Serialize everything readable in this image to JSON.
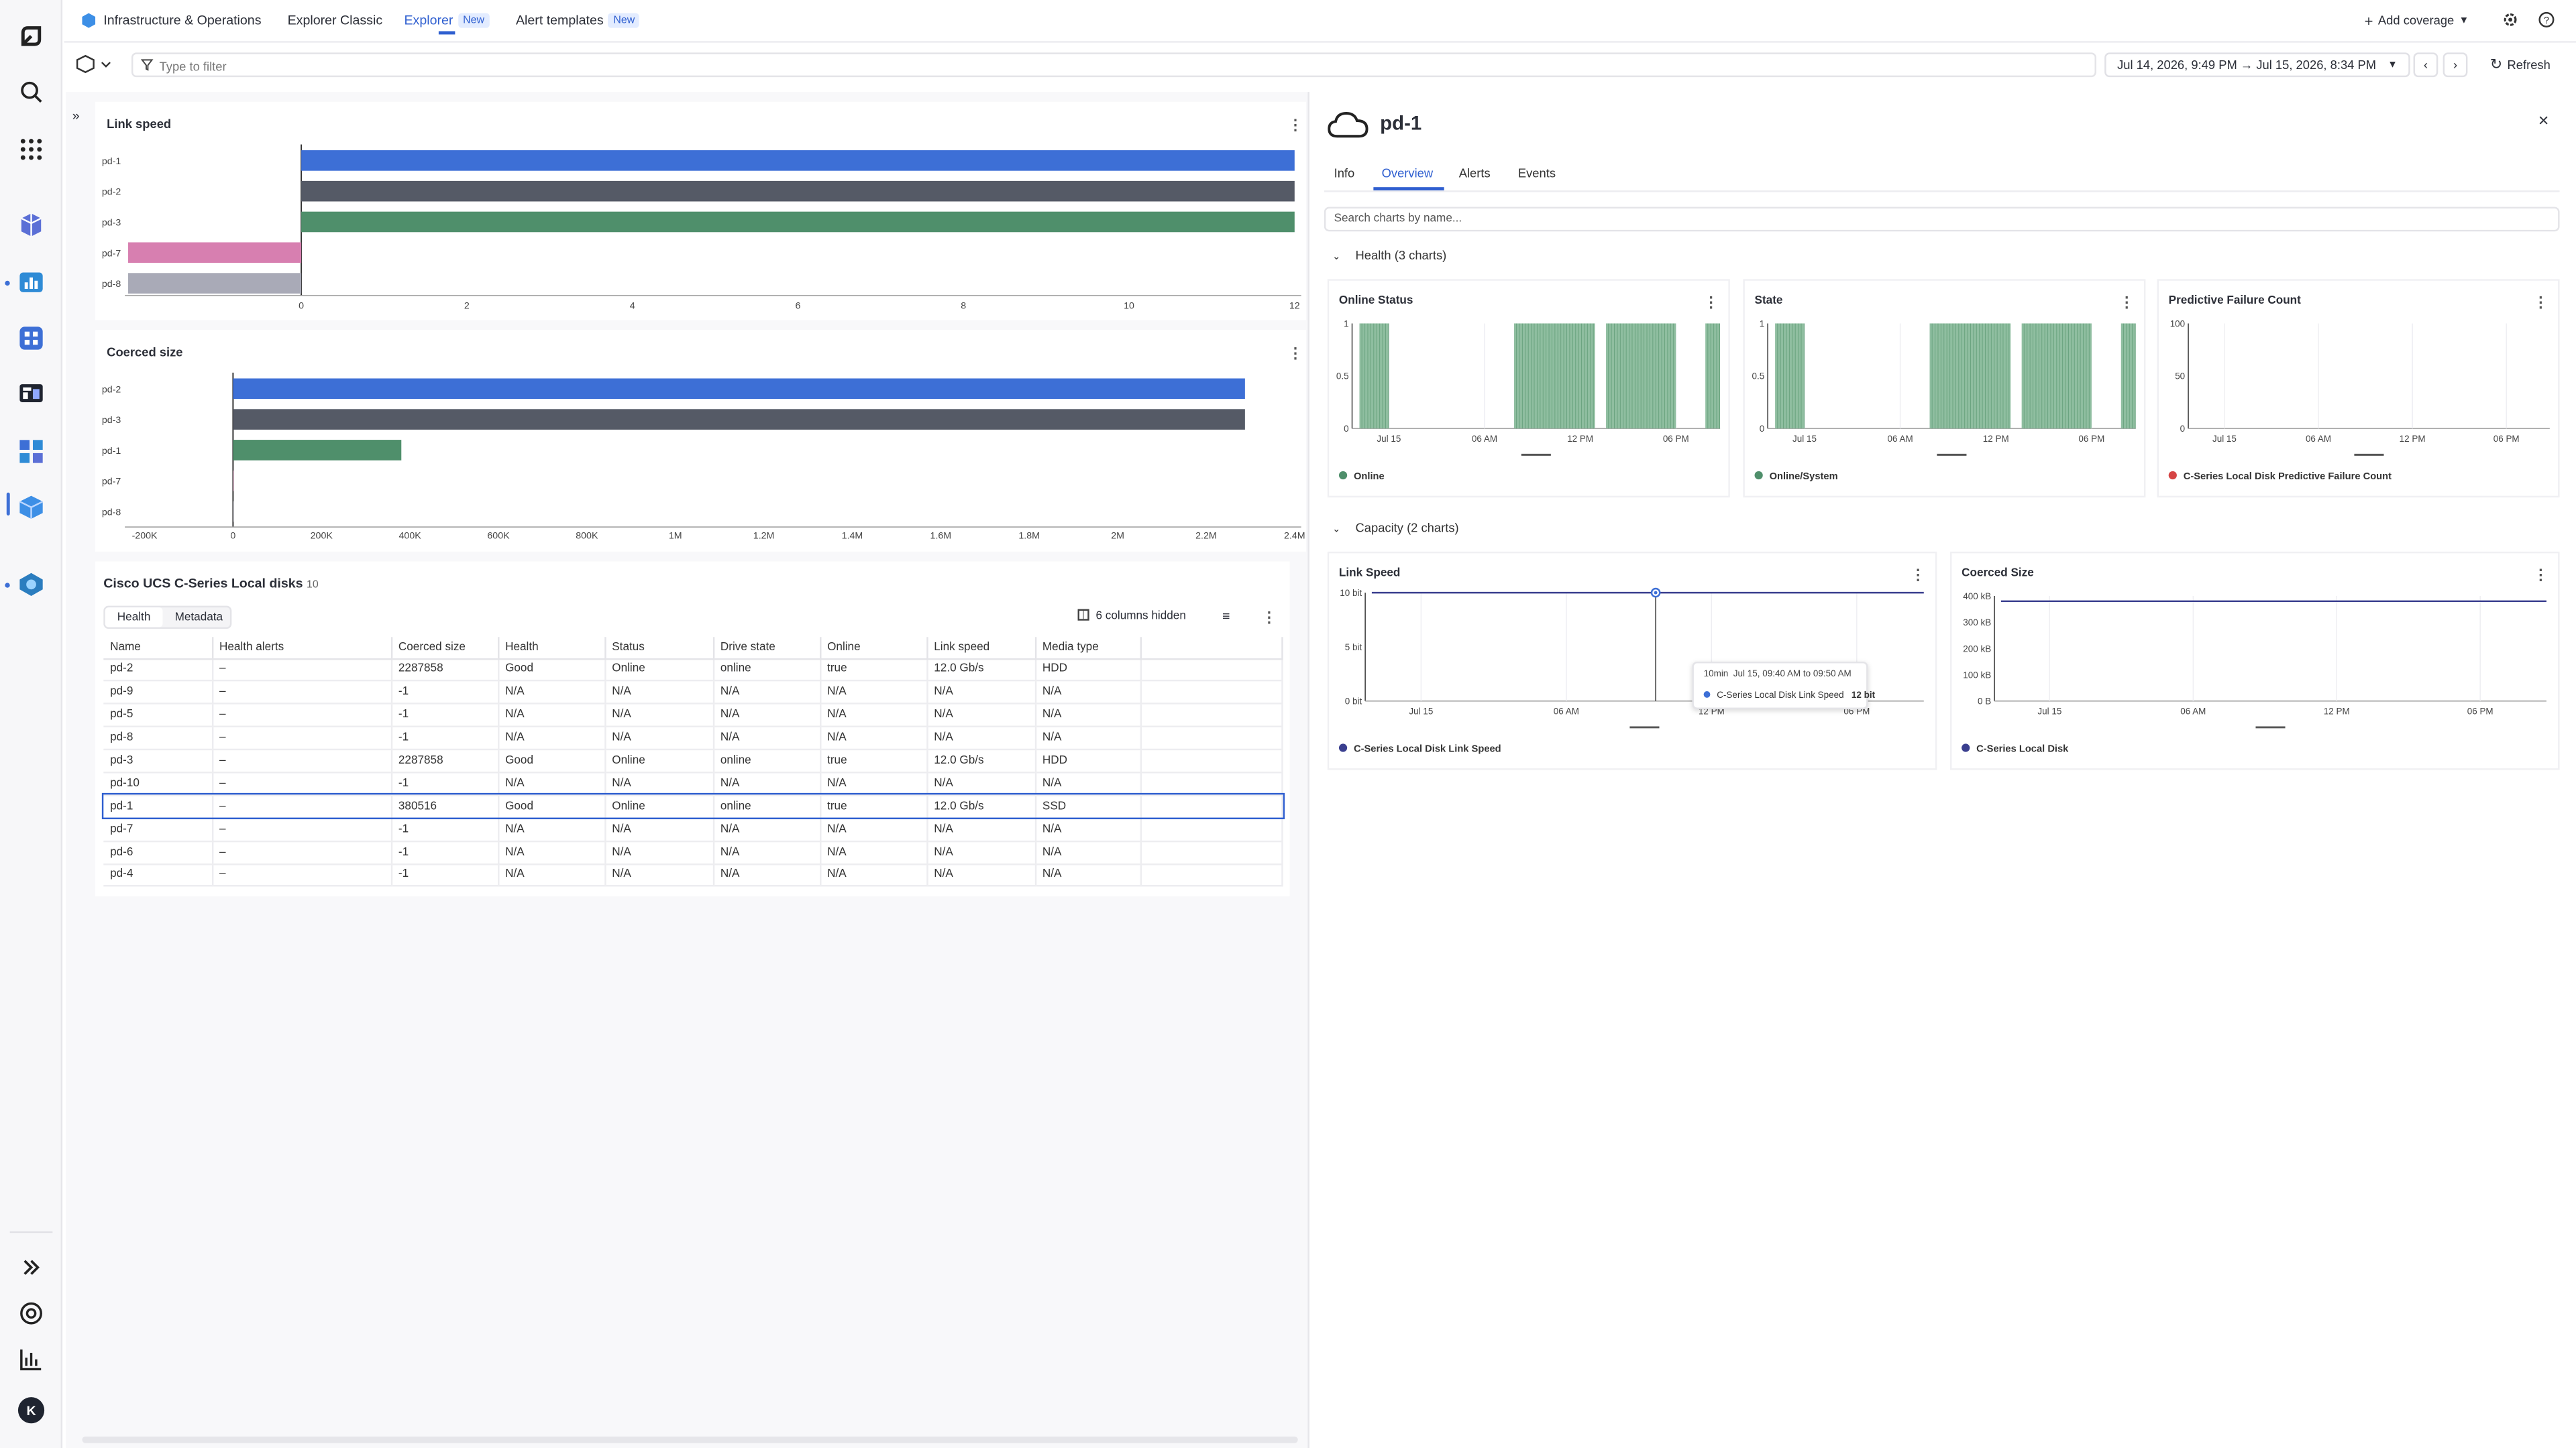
{
  "topnav": {
    "app_title": "Infrastructure & Operations",
    "tab_explorer_classic": "Explorer Classic",
    "tab_explorer": "Explorer",
    "tab_explorer_badge": "New",
    "tab_alert_templates": "Alert templates",
    "tab_alert_templates_badge": "New",
    "add_coverage": "Add coverage"
  },
  "toolbar": {
    "filter_placeholder": "Type to filter",
    "timeframe": "Jul 14, 2026, 9:49 PM → Jul 15, 2026, 8:34 PM",
    "refresh": "Refresh"
  },
  "left": {
    "link_speed_chart": {
      "title": "Link speed",
      "type": "bar",
      "categories": [
        "pd-1",
        "pd-2",
        "pd-3",
        "pd-7",
        "pd-8"
      ],
      "values": [
        12,
        12,
        12,
        -1,
        -1
      ],
      "colors": [
        "#3d6fd6",
        "#555a66",
        "#4f8f6b",
        "#d77fb0",
        "#a9aab7"
      ],
      "ticks": [
        "0",
        "2",
        "4",
        "6",
        "8",
        "10",
        "12"
      ],
      "xlim": [
        -1,
        12
      ]
    },
    "coerced_size_chart": {
      "title": "Coerced size",
      "type": "bar",
      "categories": [
        "pd-2",
        "pd-3",
        "pd-1",
        "pd-7",
        "pd-8"
      ],
      "values": [
        2287858,
        2287858,
        380516,
        -1,
        -1
      ],
      "colors": [
        "#3d6fd6",
        "#555a66",
        "#4f8f6b",
        "#d77fb0",
        "#a9aab7"
      ],
      "ticks": [
        "-200K",
        "0",
        "200K",
        "400K",
        "600K",
        "800K",
        "1M",
        "1.2M",
        "1.4M",
        "1.6M",
        "1.8M",
        "2M",
        "2.2M",
        "2.4M"
      ],
      "xlim": [
        -200000,
        2400000
      ]
    },
    "table": {
      "title": "Cisco UCS C-Series Local disks",
      "count": "10",
      "tab_health": "Health",
      "tab_metadata": "Metadata",
      "columns_hidden": "6 columns hidden",
      "columns": [
        "Name",
        "Health alerts",
        "Coerced size",
        "Health",
        "Status",
        "Drive state",
        "Online",
        "Link speed",
        "Media type"
      ],
      "rows": [
        [
          "pd-2",
          "–",
          "2287858",
          "Good",
          "Online",
          "online",
          "true",
          "12.0 Gb/s",
          "HDD"
        ],
        [
          "pd-9",
          "–",
          "-1",
          "N/A",
          "N/A",
          "N/A",
          "N/A",
          "N/A",
          "N/A"
        ],
        [
          "pd-5",
          "–",
          "-1",
          "N/A",
          "N/A",
          "N/A",
          "N/A",
          "N/A",
          "N/A"
        ],
        [
          "pd-8",
          "–",
          "-1",
          "N/A",
          "N/A",
          "N/A",
          "N/A",
          "N/A",
          "N/A"
        ],
        [
          "pd-3",
          "–",
          "2287858",
          "Good",
          "Online",
          "online",
          "true",
          "12.0 Gb/s",
          "HDD"
        ],
        [
          "pd-10",
          "–",
          "-1",
          "N/A",
          "N/A",
          "N/A",
          "N/A",
          "N/A",
          "N/A"
        ],
        [
          "pd-1",
          "–",
          "380516",
          "Good",
          "Online",
          "online",
          "true",
          "12.0 Gb/s",
          "SSD"
        ],
        [
          "pd-7",
          "–",
          "-1",
          "N/A",
          "N/A",
          "N/A",
          "N/A",
          "N/A",
          "N/A"
        ],
        [
          "pd-6",
          "–",
          "-1",
          "N/A",
          "N/A",
          "N/A",
          "N/A",
          "N/A",
          "N/A"
        ],
        [
          "pd-4",
          "–",
          "-1",
          "N/A",
          "N/A",
          "N/A",
          "N/A",
          "N/A",
          "N/A"
        ]
      ],
      "selected_row": "pd-1"
    }
  },
  "detail": {
    "title": "pd-1",
    "tabs": [
      "Info",
      "Overview",
      "Alerts",
      "Events"
    ],
    "active_tab": "Overview",
    "search_placeholder": "Search charts by name...",
    "health_section": "Health (3 charts)",
    "capacity_section": "Capacity (2 charts)",
    "time_ticks": [
      "Jul 15",
      "06 AM",
      "12 PM",
      "06 PM"
    ],
    "tooltip": {
      "interval": "10min",
      "range": "Jul 15, 09:40 AM to 09:50 AM",
      "series": "C-Series Local Disk Link Speed",
      "value": "12 bit"
    }
  },
  "chart_data": [
    {
      "type": "bar",
      "title": "Link speed",
      "categories": [
        "pd-1",
        "pd-2",
        "pd-3",
        "pd-7",
        "pd-8"
      ],
      "values": [
        12,
        12,
        12,
        -1,
        -1
      ],
      "xlim": [
        -1,
        12
      ]
    },
    {
      "type": "bar",
      "title": "Coerced size",
      "categories": [
        "pd-2",
        "pd-3",
        "pd-1",
        "pd-7",
        "pd-8"
      ],
      "values": [
        2287858,
        2287858,
        380516,
        -1,
        -1
      ],
      "xlim": [
        -200000,
        2400000
      ]
    },
    {
      "type": "bar",
      "title": "Online Status",
      "ylim": [
        0,
        1
      ],
      "yticks": [
        "0",
        "0.5",
        "1"
      ],
      "legend": "Online",
      "color": "#4f8f6b",
      "segments": [
        [
          0.02,
          0.1
        ],
        [
          0.44,
          0.66
        ],
        [
          0.69,
          0.88
        ],
        [
          0.96,
          1.0
        ]
      ],
      "value": 1
    },
    {
      "type": "bar",
      "title": "State",
      "ylim": [
        0,
        1
      ],
      "yticks": [
        "0",
        "0.5",
        "1"
      ],
      "legend": "Online/System",
      "color": "#4f8f6b",
      "segments": [
        [
          0.02,
          0.1
        ],
        [
          0.44,
          0.66
        ],
        [
          0.69,
          0.88
        ],
        [
          0.96,
          1.0
        ]
      ],
      "value": 1
    },
    {
      "type": "line",
      "title": "Predictive Failure Count",
      "ylim": [
        0,
        100
      ],
      "yticks": [
        "0",
        "50",
        "100"
      ],
      "legend": "C-Series Local Disk Predictive Failure Count",
      "color": "#d64545",
      "values": []
    },
    {
      "type": "line",
      "title": "Link Speed",
      "ylim": [
        0,
        12
      ],
      "yticks": [
        "0 bit",
        "5 bit",
        "10 bit"
      ],
      "legend": "C-Series Local Disk Link Speed",
      "color": "#3a3f8f",
      "value": 12
    },
    {
      "type": "line",
      "title": "Coerced Size",
      "ylim": [
        0,
        400
      ],
      "yticks": [
        "0 B",
        "100 kB",
        "200 kB",
        "300 kB",
        "400 kB"
      ],
      "legend": "C-Series Local Disk",
      "color": "#3a3f8f",
      "value": 380
    }
  ]
}
